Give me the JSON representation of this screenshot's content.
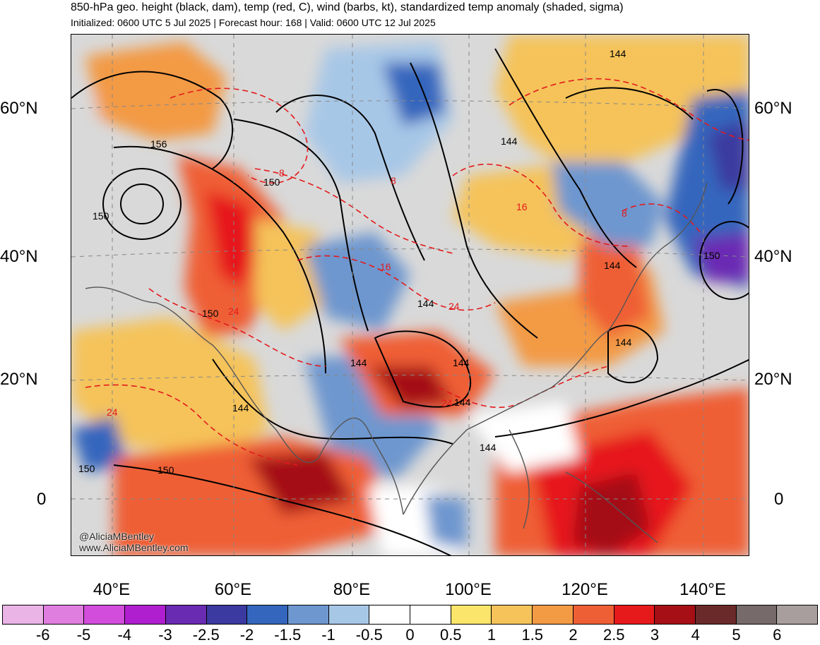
{
  "header": {
    "title": "850-hPa geo. height (black, dam), temp (red, C), wind (barbs, kt), standardized temp anomaly (shaded, sigma)",
    "subtitle": "Initialized: 0600 UTC 5 Jul 2025 | Forecast hour: 168 | Valid: 0600 UTC 12 Jul 2025"
  },
  "map": {
    "lat_labels": [
      "60°N",
      "40°N",
      "20°N",
      "0"
    ],
    "lon_labels": [
      "40°E",
      "60°E",
      "80°E",
      "100°E",
      "120°E",
      "140°E"
    ],
    "height_contour_labels": [
      "156",
      "150",
      "150",
      "150",
      "150",
      "150",
      "144",
      "144",
      "144",
      "144",
      "144",
      "144",
      "144",
      "144",
      "150",
      "144",
      "144"
    ],
    "temp_contour_labels": [
      "8",
      "8",
      "8",
      "16",
      "16",
      "24",
      "24",
      "24",
      "24"
    ],
    "credit_handle": "@AliciaMBentley",
    "credit_url": "www.AliciaMBentley.com",
    "colors": {
      "land_neutral": "#d9d9d9",
      "height_contour": "#000000",
      "temp_contour": "#e31a1c",
      "coastline": "#555555"
    }
  },
  "colorbar": {
    "tick_labels": [
      "-6",
      "-5",
      "-4",
      "-3",
      "-2.5",
      "-2",
      "-1.5",
      "-1",
      "-0.5",
      "0",
      "0.5",
      "1",
      "1.5",
      "2",
      "2.5",
      "3",
      "4",
      "5",
      "6"
    ],
    "colors": [
      "#eab4e6",
      "#e07ee0",
      "#d24ddc",
      "#b01fcf",
      "#6a2bb3",
      "#3b3aa0",
      "#3566bd",
      "#6e97cf",
      "#a7c7e7",
      "#ffffff",
      "#ffffff",
      "#fbe56b",
      "#f5c35a",
      "#f39a45",
      "#ef5f36",
      "#e6191b",
      "#a50f15",
      "#6b2a2a",
      "#766a6a",
      "#a99e9e"
    ]
  }
}
